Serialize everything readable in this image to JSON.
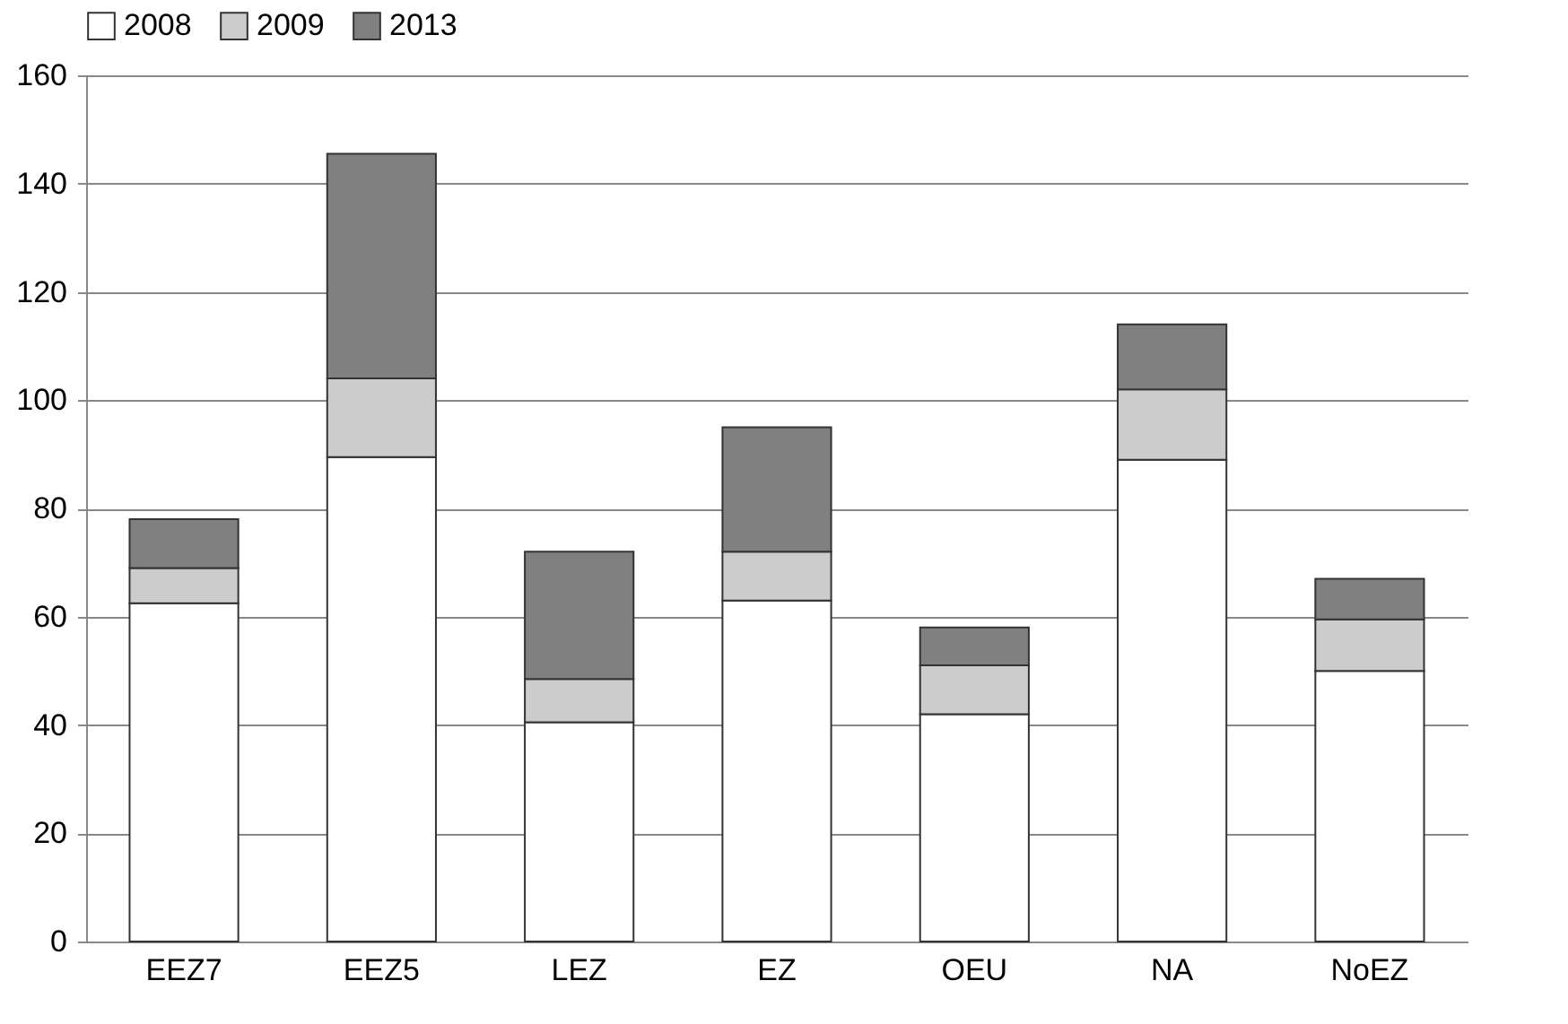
{
  "chart_data": {
    "type": "bar",
    "stacked": true,
    "categories": [
      "EEZ7",
      "EEZ5",
      "LEZ",
      "EZ",
      "OEU",
      "NA",
      "NoEZ"
    ],
    "series": [
      {
        "name": "2008",
        "color": "#ffffff",
        "values": [
          62.5,
          89.5,
          40.5,
          63,
          42,
          89,
          50
        ]
      },
      {
        "name": "2009",
        "color": "#cccccc",
        "values": [
          6.5,
          14.5,
          8,
          9,
          9,
          13,
          9.5
        ]
      },
      {
        "name": "2013",
        "color": "#808080",
        "values": [
          9,
          41.5,
          23.5,
          23,
          7,
          12,
          7.5
        ]
      }
    ],
    "ylim": [
      0,
      160
    ],
    "yticks": [
      0,
      20,
      40,
      60,
      80,
      100,
      120,
      140,
      160
    ],
    "grid": "y",
    "legend": "top"
  }
}
